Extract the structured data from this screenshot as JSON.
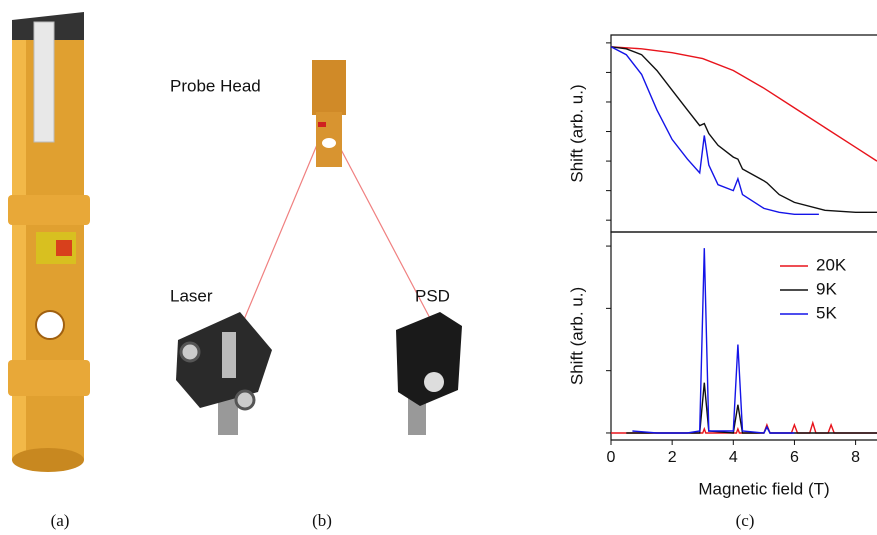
{
  "panels": {
    "a": {
      "label": "(a)"
    },
    "b": {
      "label": "(b)",
      "probe_head": "Probe Head",
      "laser": "Laser",
      "psd": "PSD"
    },
    "c": {
      "label": "(c)"
    }
  },
  "chart_data": [
    {
      "type": "line",
      "ylabel": "Shift (arb. u.)",
      "xlim": [
        0,
        8.7
      ],
      "ylim": [
        0,
        1
      ],
      "yticks": [
        0.06,
        0.21,
        0.36,
        0.51,
        0.66,
        0.81,
        0.96
      ],
      "series": [
        {
          "name": "20K",
          "color": "#e8141c",
          "x": [
            0,
            1,
            2,
            3,
            4,
            5,
            6,
            7,
            8,
            8.7
          ],
          "values": [
            0.94,
            0.93,
            0.91,
            0.88,
            0.82,
            0.73,
            0.63,
            0.53,
            0.43,
            0.36
          ]
        },
        {
          "name": "9K",
          "color": "#111111",
          "x": [
            0,
            0.5,
            1,
            1.5,
            2,
            2.5,
            2.9,
            3.05,
            3.2,
            3.5,
            4,
            4.15,
            4.3,
            5,
            5.1,
            5.5,
            6,
            7,
            8,
            8.7
          ],
          "values": [
            0.94,
            0.93,
            0.9,
            0.82,
            0.72,
            0.62,
            0.54,
            0.55,
            0.5,
            0.44,
            0.38,
            0.37,
            0.32,
            0.26,
            0.25,
            0.19,
            0.15,
            0.11,
            0.1,
            0.1
          ]
        },
        {
          "name": "5K",
          "color": "#1414e8",
          "x": [
            0,
            0.5,
            1,
            1.5,
            2,
            2.5,
            2.9,
            3.05,
            3.2,
            3.5,
            4,
            4.15,
            4.3,
            5,
            5.5,
            6,
            6.8
          ],
          "values": [
            0.94,
            0.9,
            0.8,
            0.62,
            0.47,
            0.37,
            0.3,
            0.49,
            0.34,
            0.24,
            0.21,
            0.27,
            0.19,
            0.12,
            0.1,
            0.09,
            0.09
          ]
        }
      ]
    },
    {
      "type": "line",
      "ylabel": "Shift (arb. u.)",
      "xlabel": "Magnetic field (T)",
      "xlim": [
        0,
        8.7
      ],
      "xticks": [
        0,
        2,
        4,
        6,
        8
      ],
      "ylim": [
        -0.035,
        1
      ],
      "yticks": [
        0,
        0.31,
        0.62,
        0.93
      ],
      "legend": "upper right",
      "series": [
        {
          "name": "20K",
          "color": "#e8141c",
          "x": [
            0,
            3.0,
            3.05,
            3.1,
            4.1,
            4.15,
            4.2,
            5.0,
            5.1,
            5.2,
            5.9,
            6.0,
            6.1,
            6.5,
            6.6,
            6.7,
            7.1,
            7.2,
            7.3,
            8.7
          ],
          "values": [
            0,
            0,
            0.02,
            0,
            0,
            0.02,
            0,
            0,
            0.04,
            0,
            0,
            0.04,
            0,
            0,
            0.05,
            0,
            0,
            0.04,
            0,
            0
          ]
        },
        {
          "name": "9K",
          "color": "#111111",
          "x": [
            0.5,
            2.9,
            3.05,
            3.2,
            4.0,
            4.15,
            4.3,
            5.0,
            5.1,
            5.2,
            8.7
          ],
          "values": [
            0,
            0,
            0.25,
            0.01,
            0,
            0.14,
            0,
            0,
            0.03,
            0,
            0
          ]
        },
        {
          "name": "5K",
          "color": "#1414e8",
          "x": [
            0.7,
            1.5,
            2.5,
            2.9,
            3.05,
            3.2,
            4.0,
            4.15,
            4.3,
            5.0,
            5.1,
            5.2,
            6.0
          ],
          "values": [
            0.01,
            0,
            0,
            0.01,
            0.92,
            0.01,
            0.01,
            0.44,
            0.01,
            0,
            0.03,
            0,
            0
          ]
        }
      ]
    }
  ]
}
